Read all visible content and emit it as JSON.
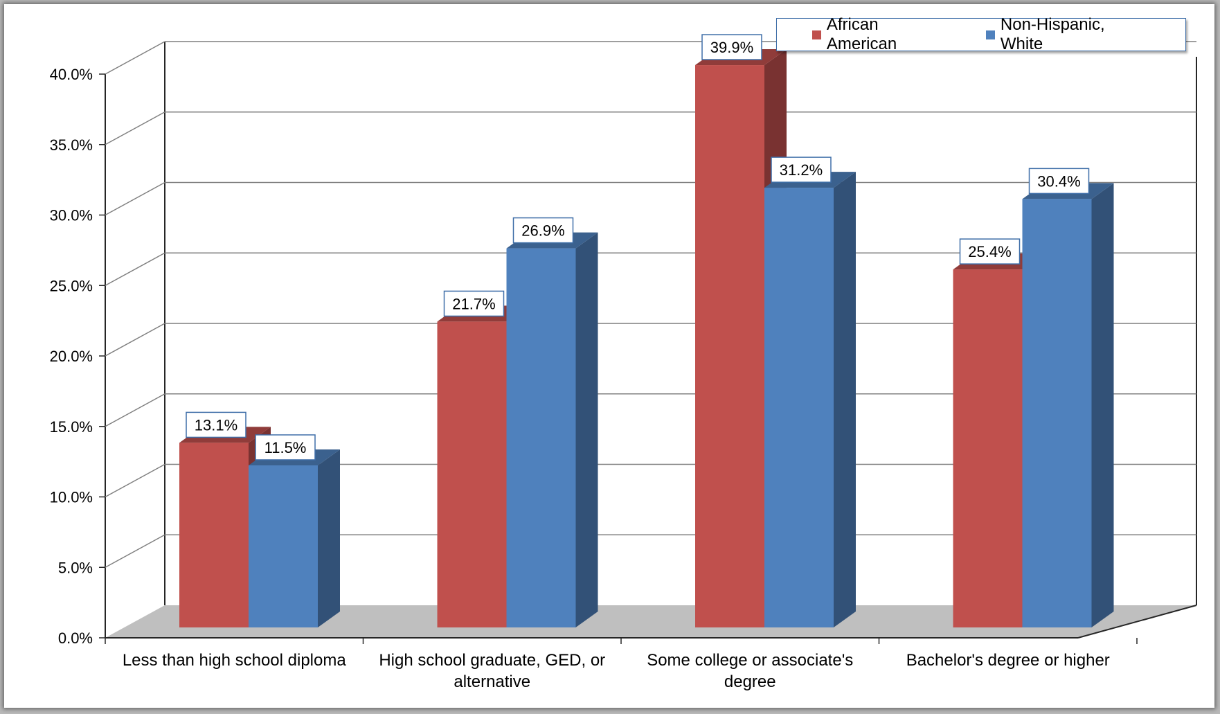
{
  "chart_data": {
    "type": "bar",
    "categories": [
      "Less than high school diploma",
      "High school graduate, GED, or alternative",
      "Some college or associate's degree",
      "Bachelor's degree or higher"
    ],
    "series": [
      {
        "name": "African American",
        "values": [
          13.1,
          21.7,
          39.9,
          25.4
        ],
        "labels": [
          "13.1%",
          "21.7%",
          "39.9%",
          "25.4%"
        ],
        "color": "#c0504d"
      },
      {
        "name": "Non-Hispanic, White",
        "values": [
          11.5,
          26.9,
          31.2,
          30.4
        ],
        "labels": [
          "11.5%",
          "26.9%",
          "31.2%",
          "30.4%"
        ],
        "color": "#4f81bd"
      }
    ],
    "y_ticks": [
      "0.0%",
      "5.0%",
      "10.0%",
      "15.0%",
      "20.0%",
      "25.0%",
      "30.0%",
      "35.0%",
      "40.0%"
    ],
    "ylim": [
      0,
      40
    ],
    "grid": true,
    "legend_position": "top-right",
    "style": "3d-clustered-column"
  }
}
